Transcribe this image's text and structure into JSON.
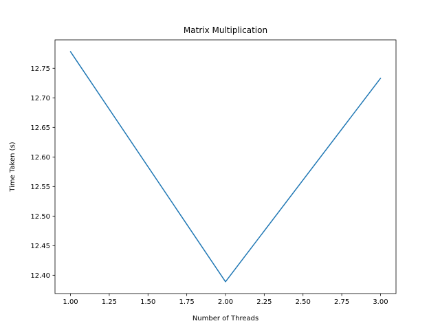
{
  "chart_data": {
    "type": "line",
    "title": "Matrix Multiplication",
    "xlabel": "Number of Threads",
    "ylabel": "Time Taken (s)",
    "x": [
      1,
      2,
      3
    ],
    "series": [
      {
        "values": [
          12.778,
          12.389,
          12.733
        ],
        "color": "#1f77b4"
      }
    ],
    "xlim": [
      0.9,
      3.1
    ],
    "ylim": [
      12.369,
      12.798
    ],
    "xticks": [
      1.0,
      1.25,
      1.5,
      1.75,
      2.0,
      2.25,
      2.5,
      2.75,
      3.0
    ],
    "xtick_labels": [
      "1.00",
      "1.25",
      "1.50",
      "1.75",
      "2.00",
      "2.25",
      "2.50",
      "2.75",
      "3.00"
    ],
    "yticks": [
      12.4,
      12.45,
      12.5,
      12.55,
      12.6,
      12.65,
      12.7,
      12.75
    ],
    "ytick_labels": [
      "12.40",
      "12.45",
      "12.50",
      "12.55",
      "12.60",
      "12.65",
      "12.70",
      "12.75"
    ],
    "grid": false,
    "legend": false
  }
}
